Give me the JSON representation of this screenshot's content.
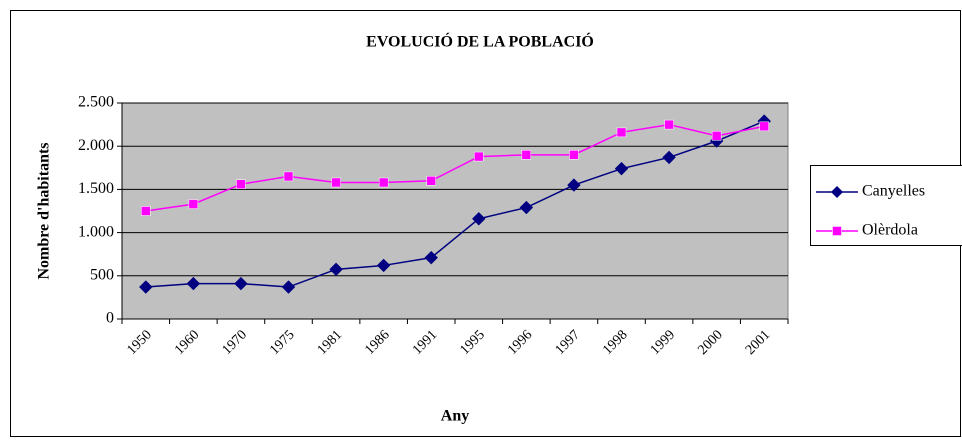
{
  "chart_data": {
    "type": "line",
    "title": "EVOLUCIÓ DE LA POBLACIÓ",
    "x_label": "Any",
    "y_label": "Nombre d'habitants",
    "categories": [
      "1950",
      "1960",
      "1970",
      "1975",
      "1981",
      "1986",
      "1991",
      "1995",
      "1996",
      "1997",
      "1998",
      "1999",
      "2000",
      "2001"
    ],
    "series": [
      {
        "name": "Canyelles",
        "color": "#000080",
        "marker": "diamond",
        "values": [
          370,
          410,
          410,
          370,
          575,
          620,
          710,
          1160,
          1290,
          1550,
          1740,
          1870,
          2060,
          2290
        ]
      },
      {
        "name": "Olèrdola",
        "color": "#ff00ff",
        "marker": "square",
        "values": [
          1250,
          1330,
          1560,
          1650,
          1580,
          1580,
          1600,
          1880,
          1900,
          1900,
          2160,
          2250,
          2120,
          2230
        ]
      }
    ],
    "ylim": [
      0,
      2500
    ],
    "yticks": [
      0,
      500,
      {
        "value": 1000,
        "label": "1.000"
      },
      {
        "value": 1500,
        "label": "1.500"
      },
      {
        "value": 2000,
        "label": "2.000"
      },
      {
        "value": 2500,
        "label": "2.500"
      }
    ],
    "grid": true,
    "legend": "right"
  }
}
